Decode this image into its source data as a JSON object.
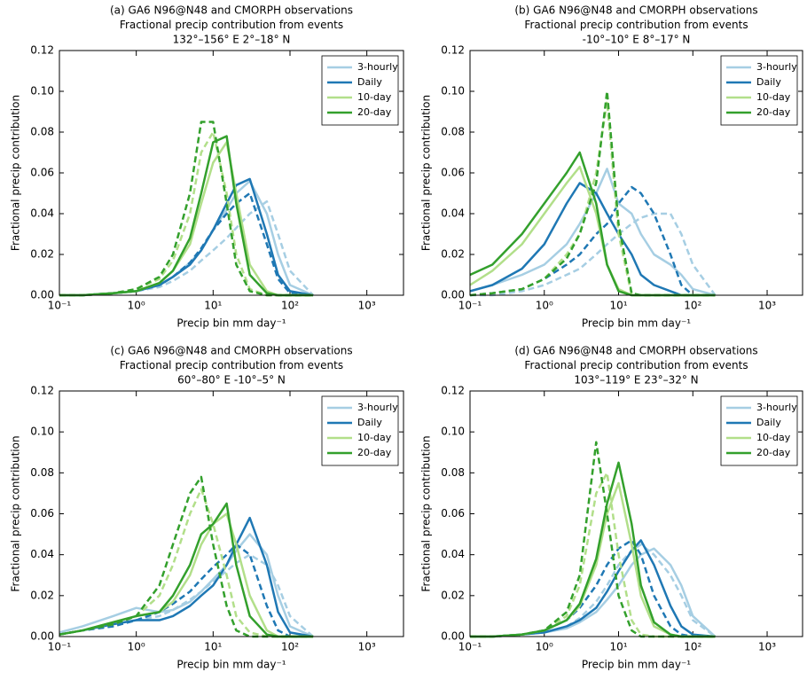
{
  "chart_data": [
    {
      "type": "line",
      "title": [
        "(a) GA6 N96@N48 and CMORPH observations",
        "Fractional precip contribution from events",
        "132°–156° E  2°–18° N"
      ],
      "xlabel": "Precip bin mm day⁻¹",
      "ylabel": "Fractional precip contribution",
      "xscale": "log",
      "legend": "upper right",
      "grid": false,
      "xlim": [
        0.1,
        3000
      ],
      "ylim": [
        0,
        0.12
      ],
      "xticks": [
        {
          "value": 0.1,
          "label": "10⁻¹"
        },
        {
          "value": 1,
          "label": "10⁰"
        },
        {
          "value": 10,
          "label": "10¹"
        },
        {
          "value": 100,
          "label": "10²"
        },
        {
          "value": 1000,
          "label": "10³"
        }
      ],
      "yticks": [
        {
          "value": 0,
          "label": "0.00"
        },
        {
          "value": 0.02,
          "label": "0.02"
        },
        {
          "value": 0.04,
          "label": "0.04"
        },
        {
          "value": 0.06,
          "label": "0.06"
        },
        {
          "value": 0.08,
          "label": "0.08"
        },
        {
          "value": 0.1,
          "label": "0.10"
        },
        {
          "value": 0.12,
          "label": "0.12"
        }
      ],
      "x": [
        0.1,
        0.2,
        0.5,
        1,
        2,
        3,
        5,
        7,
        10,
        15,
        20,
        30,
        50,
        70,
        100,
        200
      ],
      "series": [
        {
          "name": "3-hourly",
          "color": "#a6cee3",
          "values": [
            0,
            0,
            0.001,
            0.002,
            0.005,
            0.009,
            0.016,
            0.022,
            0.032,
            0.042,
            0.05,
            0.056,
            0.04,
            0.02,
            0.005,
            0
          ],
          "dashed_values": [
            0,
            0,
            0.001,
            0.002,
            0.004,
            0.007,
            0.012,
            0.017,
            0.022,
            0.028,
            0.033,
            0.04,
            0.046,
            0.03,
            0.012,
            0
          ]
        },
        {
          "name": "Daily",
          "color": "#1f78b4",
          "values": [
            0,
            0,
            0.001,
            0.002,
            0.005,
            0.009,
            0.015,
            0.022,
            0.032,
            0.045,
            0.054,
            0.057,
            0.03,
            0.01,
            0.002,
            0
          ],
          "dashed_values": [
            0,
            0,
            0.001,
            0.002,
            0.005,
            0.009,
            0.016,
            0.023,
            0.032,
            0.04,
            0.045,
            0.05,
            0.025,
            0.008,
            0.001,
            0
          ]
        },
        {
          "name": "10-day",
          "color": "#b2df8a",
          "values": [
            0,
            0,
            0.001,
            0.002,
            0.006,
            0.012,
            0.025,
            0.045,
            0.065,
            0.075,
            0.05,
            0.015,
            0.002,
            0,
            0,
            0
          ],
          "dashed_values": [
            0,
            0,
            0.001,
            0.003,
            0.008,
            0.017,
            0.04,
            0.07,
            0.08,
            0.05,
            0.02,
            0.003,
            0,
            0,
            0,
            0
          ]
        },
        {
          "name": "20-day",
          "color": "#33a02c",
          "values": [
            0,
            0,
            0.001,
            0.002,
            0.006,
            0.012,
            0.028,
            0.05,
            0.075,
            0.078,
            0.045,
            0.01,
            0.001,
            0,
            0,
            0
          ],
          "dashed_values": [
            0,
            0,
            0.001,
            0.003,
            0.009,
            0.02,
            0.05,
            0.085,
            0.085,
            0.045,
            0.015,
            0.002,
            0,
            0,
            0,
            0
          ]
        }
      ]
    },
    {
      "type": "line",
      "title": [
        "(b) GA6 N96@N48 and CMORPH observations",
        "Fractional precip contribution from events",
        "-10°–10° E  8°–17° N"
      ],
      "xlabel": "Precip bin mm day⁻¹",
      "ylabel": "Fractional precip contribution",
      "xscale": "log",
      "legend": "upper right",
      "grid": false,
      "xlim": [
        0.1,
        3000
      ],
      "ylim": [
        0,
        0.12
      ],
      "xticks": [
        {
          "value": 0.1,
          "label": "10⁻¹"
        },
        {
          "value": 1,
          "label": "10⁰"
        },
        {
          "value": 10,
          "label": "10¹"
        },
        {
          "value": 100,
          "label": "10²"
        },
        {
          "value": 1000,
          "label": "10³"
        }
      ],
      "yticks": [
        {
          "value": 0,
          "label": "0.00"
        },
        {
          "value": 0.02,
          "label": "0.02"
        },
        {
          "value": 0.04,
          "label": "0.04"
        },
        {
          "value": 0.06,
          "label": "0.06"
        },
        {
          "value": 0.08,
          "label": "0.08"
        },
        {
          "value": 0.1,
          "label": "0.10"
        },
        {
          "value": 0.12,
          "label": "0.12"
        }
      ],
      "x": [
        0.1,
        0.2,
        0.5,
        1,
        2,
        3,
        5,
        7,
        10,
        15,
        20,
        30,
        50,
        70,
        100,
        200
      ],
      "series": [
        {
          "name": "3-hourly",
          "color": "#a6cee3",
          "values": [
            0.002,
            0.005,
            0.01,
            0.015,
            0.025,
            0.035,
            0.05,
            0.062,
            0.045,
            0.04,
            0.03,
            0.02,
            0.015,
            0.01,
            0.003,
            0
          ],
          "dashed_values": [
            0,
            0,
            0.002,
            0.005,
            0.01,
            0.013,
            0.02,
            0.025,
            0.03,
            0.035,
            0.038,
            0.04,
            0.04,
            0.03,
            0.015,
            0
          ]
        },
        {
          "name": "Daily",
          "color": "#1f78b4",
          "values": [
            0.002,
            0.005,
            0.013,
            0.025,
            0.045,
            0.055,
            0.05,
            0.04,
            0.03,
            0.02,
            0.01,
            0.005,
            0.002,
            0,
            0,
            0
          ],
          "dashed_values": [
            0,
            0.001,
            0.003,
            0.008,
            0.015,
            0.02,
            0.03,
            0.035,
            0.045,
            0.053,
            0.05,
            0.04,
            0.02,
            0.005,
            0,
            0
          ]
        },
        {
          "name": "10-day",
          "color": "#b2df8a",
          "values": [
            0.005,
            0.012,
            0.025,
            0.04,
            0.055,
            0.063,
            0.04,
            0.015,
            0.003,
            0,
            0,
            0,
            0,
            0,
            0,
            0
          ],
          "dashed_values": [
            0,
            0.001,
            0.003,
            0.008,
            0.02,
            0.03,
            0.06,
            0.095,
            0.03,
            0,
            0,
            0,
            0,
            0,
            0,
            0
          ]
        },
        {
          "name": "20-day",
          "color": "#33a02c",
          "values": [
            0.01,
            0.015,
            0.03,
            0.045,
            0.06,
            0.07,
            0.045,
            0.015,
            0.002,
            0,
            0,
            0,
            0,
            0,
            0,
            0
          ],
          "dashed_values": [
            0,
            0.001,
            0.003,
            0.008,
            0.018,
            0.03,
            0.055,
            0.1,
            0.035,
            0.001,
            0,
            0,
            0,
            0,
            0,
            0
          ]
        }
      ]
    },
    {
      "type": "line",
      "title": [
        "(c) GA6 N96@N48 and CMORPH observations",
        "Fractional precip contribution from events",
        "60°–80° E  -10°–5° N"
      ],
      "xlabel": "Precip bin mm day⁻¹",
      "ylabel": "Fractional precip contribution",
      "xscale": "log",
      "legend": "upper right",
      "grid": false,
      "xlim": [
        0.1,
        3000
      ],
      "ylim": [
        0,
        0.12
      ],
      "xticks": [
        {
          "value": 0.1,
          "label": "10⁻¹"
        },
        {
          "value": 1,
          "label": "10⁰"
        },
        {
          "value": 10,
          "label": "10¹"
        },
        {
          "value": 100,
          "label": "10²"
        },
        {
          "value": 1000,
          "label": "10³"
        }
      ],
      "yticks": [
        {
          "value": 0,
          "label": "0.00"
        },
        {
          "value": 0.02,
          "label": "0.02"
        },
        {
          "value": 0.04,
          "label": "0.04"
        },
        {
          "value": 0.06,
          "label": "0.06"
        },
        {
          "value": 0.08,
          "label": "0.08"
        },
        {
          "value": 0.1,
          "label": "0.10"
        },
        {
          "value": 0.12,
          "label": "0.12"
        }
      ],
      "x": [
        0.1,
        0.2,
        0.5,
        1,
        2,
        3,
        5,
        7,
        10,
        15,
        20,
        30,
        50,
        70,
        100,
        200
      ],
      "series": [
        {
          "name": "3-hourly",
          "color": "#a6cee3",
          "values": [
            0.002,
            0.005,
            0.01,
            0.014,
            0.012,
            0.013,
            0.017,
            0.022,
            0.028,
            0.035,
            0.042,
            0.05,
            0.04,
            0.02,
            0.005,
            0
          ],
          "dashed_values": [
            0.001,
            0.003,
            0.005,
            0.008,
            0.01,
            0.013,
            0.018,
            0.022,
            0.027,
            0.032,
            0.036,
            0.04,
            0.035,
            0.025,
            0.01,
            0
          ]
        },
        {
          "name": "Daily",
          "color": "#1f78b4",
          "values": [
            0.001,
            0.003,
            0.006,
            0.008,
            0.008,
            0.01,
            0.015,
            0.02,
            0.025,
            0.035,
            0.045,
            0.058,
            0.035,
            0.012,
            0.002,
            0
          ],
          "dashed_values": [
            0.001,
            0.003,
            0.005,
            0.008,
            0.012,
            0.016,
            0.022,
            0.028,
            0.034,
            0.04,
            0.045,
            0.04,
            0.015,
            0.003,
            0,
            0
          ]
        },
        {
          "name": "10-day",
          "color": "#b2df8a",
          "values": [
            0.001,
            0.003,
            0.007,
            0.01,
            0.012,
            0.017,
            0.03,
            0.045,
            0.055,
            0.06,
            0.045,
            0.02,
            0.003,
            0,
            0,
            0
          ],
          "dashed_values": [
            0.001,
            0.003,
            0.006,
            0.01,
            0.02,
            0.035,
            0.06,
            0.072,
            0.055,
            0.03,
            0.01,
            0.002,
            0,
            0,
            0,
            0
          ]
        },
        {
          "name": "20-day",
          "color": "#33a02c",
          "values": [
            0.001,
            0.003,
            0.007,
            0.01,
            0.012,
            0.02,
            0.035,
            0.05,
            0.055,
            0.065,
            0.035,
            0.01,
            0.001,
            0,
            0,
            0
          ],
          "dashed_values": [
            0.001,
            0.003,
            0.006,
            0.01,
            0.025,
            0.045,
            0.07,
            0.078,
            0.045,
            0.015,
            0.003,
            0,
            0,
            0,
            0,
            0
          ]
        }
      ]
    },
    {
      "type": "line",
      "title": [
        "(d) GA6 N96@N48 and CMORPH observations",
        "Fractional precip contribution from events",
        "103°–119° E  23°–32° N"
      ],
      "xlabel": "Precip bin mm day⁻¹",
      "ylabel": "Fractional precip contribution",
      "xscale": "log",
      "legend": "upper right",
      "grid": false,
      "xlim": [
        0.1,
        3000
      ],
      "ylim": [
        0,
        0.12
      ],
      "xticks": [
        {
          "value": 0.1,
          "label": "10⁻¹"
        },
        {
          "value": 1,
          "label": "10⁰"
        },
        {
          "value": 10,
          "label": "10¹"
        },
        {
          "value": 100,
          "label": "10²"
        },
        {
          "value": 1000,
          "label": "10³"
        }
      ],
      "yticks": [
        {
          "value": 0,
          "label": "0.00"
        },
        {
          "value": 0.02,
          "label": "0.02"
        },
        {
          "value": 0.04,
          "label": "0.04"
        },
        {
          "value": 0.06,
          "label": "0.06"
        },
        {
          "value": 0.08,
          "label": "0.08"
        },
        {
          "value": 0.1,
          "label": "0.10"
        },
        {
          "value": 0.12,
          "label": "0.12"
        }
      ],
      "x": [
        0.1,
        0.2,
        0.5,
        1,
        2,
        3,
        5,
        7,
        10,
        15,
        20,
        30,
        50,
        70,
        100,
        200
      ],
      "series": [
        {
          "name": "3-hourly",
          "color": "#a6cee3",
          "values": [
            0,
            0,
            0.001,
            0.002,
            0.004,
            0.007,
            0.012,
            0.018,
            0.025,
            0.035,
            0.04,
            0.043,
            0.035,
            0.025,
            0.01,
            0
          ],
          "dashed_values": [
            0,
            0,
            0.001,
            0.002,
            0.005,
            0.009,
            0.017,
            0.025,
            0.035,
            0.042,
            0.045,
            0.04,
            0.03,
            0.02,
            0.008,
            0
          ]
        },
        {
          "name": "Daily",
          "color": "#1f78b4",
          "values": [
            0,
            0,
            0.001,
            0.002,
            0.005,
            0.008,
            0.014,
            0.022,
            0.032,
            0.042,
            0.047,
            0.035,
            0.015,
            0.005,
            0.001,
            0
          ],
          "dashed_values": [
            0,
            0,
            0.001,
            0.003,
            0.008,
            0.014,
            0.025,
            0.035,
            0.043,
            0.047,
            0.04,
            0.02,
            0.005,
            0.001,
            0,
            0
          ]
        },
        {
          "name": "10-day",
          "color": "#b2df8a",
          "values": [
            0,
            0,
            0.001,
            0.003,
            0.008,
            0.015,
            0.035,
            0.06,
            0.075,
            0.045,
            0.02,
            0.005,
            0.001,
            0,
            0,
            0
          ],
          "dashed_values": [
            0,
            0,
            0.001,
            0.003,
            0.01,
            0.025,
            0.07,
            0.08,
            0.04,
            0.008,
            0.001,
            0,
            0,
            0,
            0,
            0
          ]
        },
        {
          "name": "20-day",
          "color": "#33a02c",
          "values": [
            0,
            0,
            0.001,
            0.003,
            0.008,
            0.016,
            0.038,
            0.065,
            0.085,
            0.055,
            0.025,
            0.007,
            0.001,
            0,
            0,
            0
          ],
          "dashed_values": [
            0,
            0,
            0.001,
            0.003,
            0.012,
            0.03,
            0.095,
            0.06,
            0.02,
            0.003,
            0,
            0,
            0,
            0,
            0,
            0
          ]
        }
      ]
    }
  ]
}
